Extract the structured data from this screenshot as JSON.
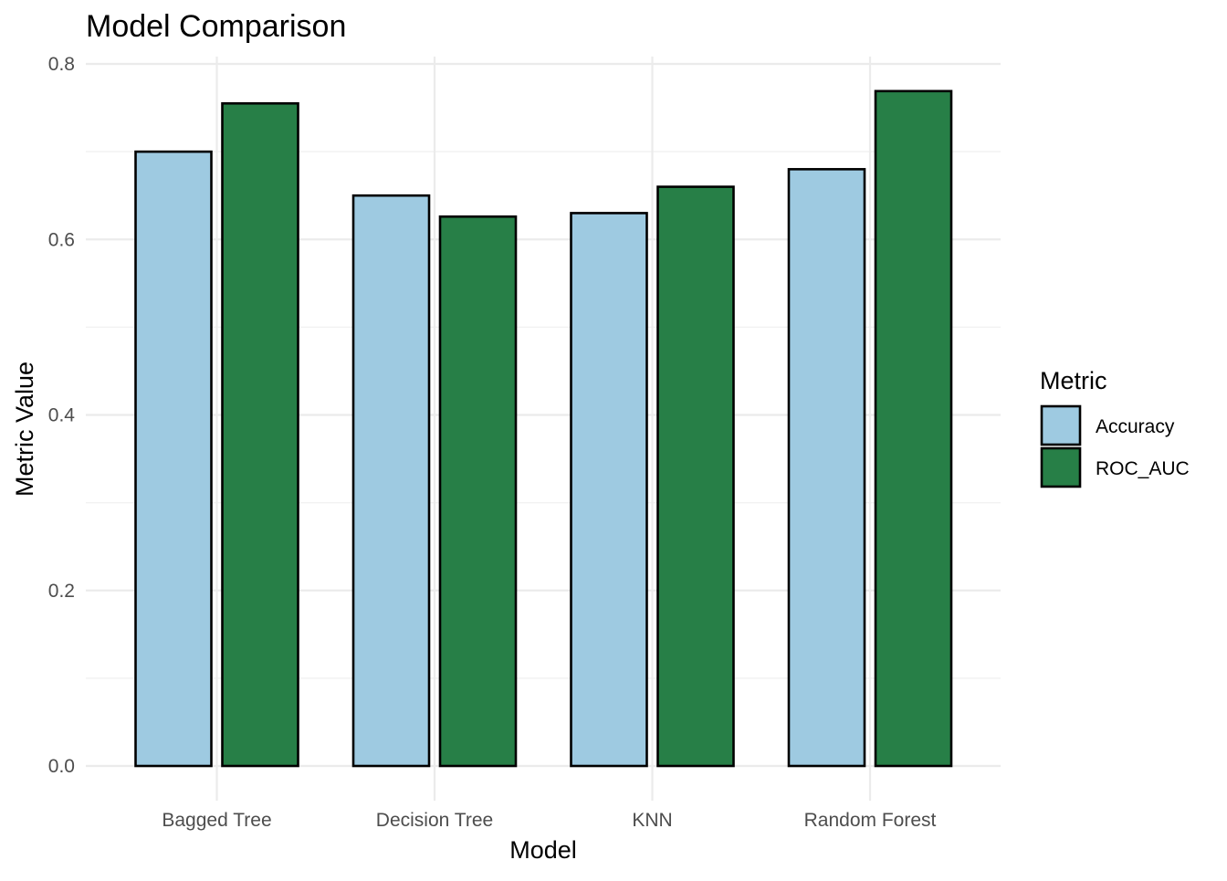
{
  "chart_data": {
    "type": "bar",
    "title": "Model Comparison",
    "xlabel": "Model",
    "ylabel": "Metric Value",
    "categories": [
      "Bagged Tree",
      "Decision Tree",
      "KNN",
      "Random Forest"
    ],
    "series": [
      {
        "name": "Accuracy",
        "values": [
          0.7,
          0.65,
          0.63,
          0.68
        ],
        "color": "#9ecae1"
      },
      {
        "name": "ROC_AUC",
        "values": [
          0.755,
          0.626,
          0.66,
          0.769
        ],
        "color": "#277f47"
      }
    ],
    "ylim": [
      0,
      0.8
    ],
    "yticks": [
      0.0,
      0.2,
      0.4,
      0.6,
      0.8
    ],
    "ytick_labels": [
      "0.0",
      "0.2",
      "0.4",
      "0.6",
      "0.8"
    ],
    "grid": true,
    "legend": {
      "title": "Metric",
      "position": "right"
    }
  }
}
